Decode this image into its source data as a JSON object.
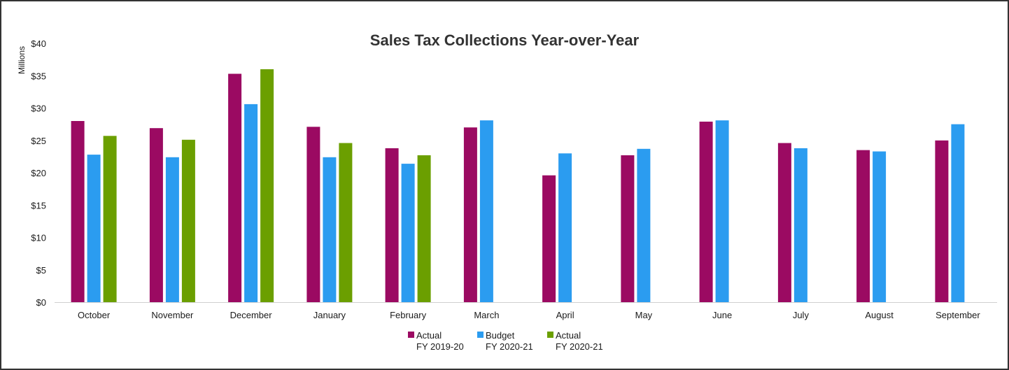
{
  "chart_data": {
    "type": "bar",
    "title": "Sales Tax Collections Year-over-Year",
    "ylabel": "Millions",
    "xlabel": "",
    "ylim": [
      0,
      40
    ],
    "yticks": [
      0,
      5,
      10,
      15,
      20,
      25,
      30,
      35,
      40
    ],
    "ytick_labels": [
      "$0",
      "$5",
      "$10",
      "$15",
      "$20",
      "$25",
      "$30",
      "$35",
      "$40"
    ],
    "grid": false,
    "legend_position": "bottom",
    "categories": [
      "October",
      "November",
      "December",
      "January",
      "February",
      "March",
      "April",
      "May",
      "June",
      "July",
      "August",
      "September"
    ],
    "series": [
      {
        "name": "Actual FY 2019-20",
        "legend_line1": "Actual",
        "legend_line2": "FY 2019-20",
        "color": "#9B0A62",
        "values": [
          28.0,
          26.9,
          35.3,
          27.1,
          23.8,
          27.0,
          19.6,
          22.7,
          27.9,
          24.6,
          23.5,
          25.0
        ]
      },
      {
        "name": "Budget FY 2020-21",
        "legend_line1": "Budget",
        "legend_line2": "FY 2020-21",
        "color": "#2B9CF0",
        "values": [
          22.8,
          22.4,
          30.6,
          22.4,
          21.4,
          28.1,
          23.0,
          23.7,
          28.1,
          23.8,
          23.3,
          27.5
        ]
      },
      {
        "name": "Actual FY 2020-21",
        "legend_line1": "Actual",
        "legend_line2": "FY 2020-21",
        "color": "#6B9F00",
        "values": [
          25.7,
          25.1,
          36.0,
          24.6,
          22.7,
          null,
          null,
          null,
          null,
          null,
          null,
          null
        ]
      }
    ]
  }
}
